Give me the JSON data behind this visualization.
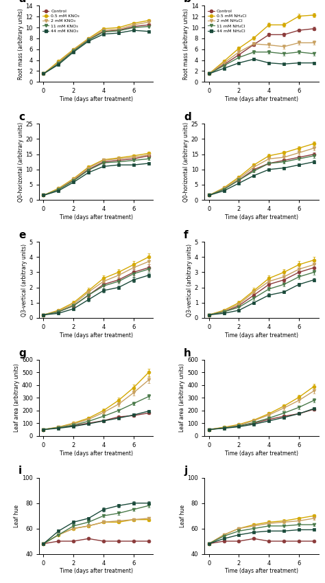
{
  "colors": {
    "control": "#8B3A3A",
    "c1": "#D4A800",
    "c2": "#C8A060",
    "c3": "#4A7A4A",
    "c4": "#1A4A3A"
  },
  "x": [
    0,
    1,
    2,
    3,
    4,
    5,
    6,
    7
  ],
  "panels": {
    "a": {
      "title": "a",
      "ylabel": "Root mass (arbitrary units)",
      "ylim": [
        0,
        14
      ],
      "yticks": [
        0,
        2,
        4,
        6,
        8,
        10,
        12,
        14
      ],
      "legend_labels": [
        "Control",
        "0.5 mM KNO₃",
        "2 mM KNO₃",
        "11 mM KNO₃",
        "44 mM KNO₃"
      ],
      "series": [
        [
          1.5,
          3.5,
          5.8,
          7.8,
          9.3,
          9.5,
          10.2,
          10.5
        ],
        [
          1.5,
          3.8,
          6.0,
          8.0,
          9.8,
          10.0,
          10.8,
          11.3
        ],
        [
          1.5,
          3.6,
          5.9,
          7.9,
          9.5,
          9.7,
          10.5,
          11.0
        ],
        [
          1.5,
          3.4,
          5.7,
          7.7,
          9.2,
          9.4,
          10.0,
          10.2
        ],
        [
          1.5,
          3.2,
          5.5,
          7.5,
          8.8,
          9.0,
          9.5,
          9.3
        ]
      ],
      "errors": [
        [
          0.1,
          0.2,
          0.2,
          0.2,
          0.2,
          0.2,
          0.2,
          0.2
        ],
        [
          0.1,
          0.2,
          0.2,
          0.2,
          0.2,
          0.2,
          0.2,
          0.2
        ],
        [
          0.1,
          0.2,
          0.2,
          0.2,
          0.2,
          0.2,
          0.2,
          0.2
        ],
        [
          0.1,
          0.2,
          0.2,
          0.2,
          0.2,
          0.2,
          0.2,
          0.2
        ],
        [
          0.1,
          0.2,
          0.2,
          0.2,
          0.2,
          0.2,
          0.2,
          0.2
        ]
      ]
    },
    "b": {
      "title": "b",
      "ylabel": "Root mass (arbitrary units)",
      "ylim": [
        0,
        14
      ],
      "yticks": [
        0,
        2,
        4,
        6,
        8,
        10,
        12,
        14
      ],
      "legend_labels": [
        "Control",
        "0.5 mM NH₄Cl",
        "2 mM NH₄Cl",
        "11 mM NH₄Cl",
        "44 mM NH₄Cl"
      ],
      "series": [
        [
          1.5,
          3.2,
          5.0,
          6.9,
          8.7,
          8.7,
          9.5,
          9.8
        ],
        [
          1.5,
          3.8,
          6.2,
          8.1,
          10.5,
          10.5,
          12.1,
          12.3
        ],
        [
          1.5,
          3.5,
          5.5,
          7.0,
          6.8,
          6.5,
          7.2,
          7.2
        ],
        [
          1.5,
          3.0,
          4.5,
          5.5,
          5.5,
          5.2,
          5.5,
          5.2
        ],
        [
          1.5,
          2.5,
          3.5,
          4.2,
          3.5,
          3.3,
          3.5,
          3.5
        ]
      ],
      "errors": [
        [
          0.1,
          0.2,
          0.2,
          0.3,
          0.3,
          0.3,
          0.3,
          0.3
        ],
        [
          0.1,
          0.2,
          0.3,
          0.3,
          0.4,
          0.4,
          0.4,
          0.4
        ],
        [
          0.1,
          0.2,
          0.3,
          0.4,
          0.4,
          0.4,
          0.4,
          0.4
        ],
        [
          0.1,
          0.2,
          0.2,
          0.3,
          0.3,
          0.3,
          0.3,
          0.3
        ],
        [
          0.1,
          0.15,
          0.2,
          0.2,
          0.2,
          0.2,
          0.2,
          0.2
        ]
      ]
    },
    "c": {
      "title": "c",
      "ylabel": "Q0-horizontal (arbitrary units)",
      "ylim": [
        0,
        25
      ],
      "yticks": [
        0,
        5,
        10,
        15,
        20,
        25
      ],
      "series": [
        [
          1.5,
          3.5,
          6.5,
          10.0,
          12.5,
          13.0,
          13.5,
          14.5
        ],
        [
          1.5,
          3.8,
          7.0,
          10.8,
          13.2,
          13.8,
          14.5,
          15.3
        ],
        [
          1.5,
          3.6,
          6.8,
          10.5,
          13.0,
          13.5,
          14.0,
          14.8
        ],
        [
          1.5,
          3.4,
          6.3,
          9.8,
          12.2,
          12.5,
          13.0,
          13.5
        ],
        [
          1.5,
          3.0,
          5.8,
          9.0,
          11.0,
          11.5,
          11.5,
          12.0
        ]
      ],
      "errors": [
        [
          0.1,
          0.2,
          0.3,
          0.3,
          0.4,
          0.4,
          0.4,
          0.5
        ],
        [
          0.1,
          0.2,
          0.3,
          0.4,
          0.4,
          0.4,
          0.5,
          0.5
        ],
        [
          0.1,
          0.2,
          0.3,
          0.3,
          0.4,
          0.4,
          0.4,
          0.5
        ],
        [
          0.1,
          0.2,
          0.3,
          0.3,
          0.4,
          0.4,
          0.4,
          0.4
        ],
        [
          0.1,
          0.2,
          0.3,
          0.3,
          0.3,
          0.3,
          0.3,
          0.4
        ]
      ]
    },
    "d": {
      "title": "d",
      "ylabel": "Q0-horizontal (arbitrary units)",
      "ylim": [
        0,
        25
      ],
      "yticks": [
        0,
        5,
        10,
        15,
        20,
        25
      ],
      "series": [
        [
          1.5,
          3.5,
          6.5,
          10.0,
          12.0,
          13.0,
          14.0,
          15.0
        ],
        [
          1.5,
          4.0,
          7.5,
          11.5,
          14.5,
          15.5,
          17.0,
          18.5
        ],
        [
          1.5,
          3.8,
          7.0,
          10.8,
          13.5,
          14.0,
          15.5,
          17.0
        ],
        [
          1.5,
          3.5,
          6.5,
          9.5,
          12.0,
          12.5,
          13.5,
          14.5
        ],
        [
          1.5,
          3.0,
          5.5,
          8.0,
          10.0,
          10.5,
          11.5,
          12.5
        ]
      ],
      "errors": [
        [
          0.1,
          0.2,
          0.3,
          0.3,
          0.4,
          0.4,
          0.5,
          0.5
        ],
        [
          0.1,
          0.3,
          0.4,
          0.5,
          0.6,
          0.6,
          0.7,
          0.7
        ],
        [
          0.1,
          0.3,
          0.4,
          0.5,
          0.6,
          0.6,
          0.6,
          0.7
        ],
        [
          0.1,
          0.2,
          0.3,
          0.4,
          0.5,
          0.5,
          0.5,
          0.6
        ],
        [
          0.1,
          0.2,
          0.3,
          0.3,
          0.4,
          0.4,
          0.5,
          0.5
        ]
      ]
    },
    "e": {
      "title": "e",
      "ylabel": "Q3-vertical (arbitrary units)",
      "ylim": [
        0,
        5
      ],
      "yticks": [
        0,
        1,
        2,
        3,
        4,
        5
      ],
      "series": [
        [
          0.2,
          0.4,
          0.8,
          1.5,
          2.2,
          2.5,
          3.0,
          3.3
        ],
        [
          0.2,
          0.5,
          1.0,
          1.8,
          2.6,
          3.0,
          3.5,
          4.0
        ],
        [
          0.2,
          0.45,
          0.9,
          1.7,
          2.4,
          2.8,
          3.3,
          3.7
        ],
        [
          0.2,
          0.4,
          0.8,
          1.5,
          2.1,
          2.4,
          2.9,
          3.2
        ],
        [
          0.2,
          0.3,
          0.6,
          1.2,
          1.8,
          2.0,
          2.5,
          2.8
        ]
      ],
      "errors": [
        [
          0.05,
          0.08,
          0.1,
          0.15,
          0.15,
          0.15,
          0.2,
          0.2
        ],
        [
          0.05,
          0.08,
          0.12,
          0.18,
          0.2,
          0.2,
          0.22,
          0.22
        ],
        [
          0.05,
          0.08,
          0.1,
          0.15,
          0.18,
          0.18,
          0.2,
          0.2
        ],
        [
          0.05,
          0.08,
          0.1,
          0.15,
          0.15,
          0.15,
          0.18,
          0.18
        ],
        [
          0.05,
          0.06,
          0.08,
          0.12,
          0.12,
          0.12,
          0.15,
          0.15
        ]
      ]
    },
    "f": {
      "title": "f",
      "ylabel": "Q3-vertical (arbitrary units)",
      "ylim": [
        0,
        5
      ],
      "yticks": [
        0,
        1,
        2,
        3,
        4,
        5
      ],
      "series": [
        [
          0.2,
          0.4,
          0.8,
          1.5,
          2.2,
          2.5,
          3.0,
          3.3
        ],
        [
          0.2,
          0.5,
          1.0,
          1.8,
          2.6,
          3.0,
          3.5,
          3.8
        ],
        [
          0.2,
          0.45,
          0.9,
          1.7,
          2.4,
          2.7,
          3.2,
          3.5
        ],
        [
          0.2,
          0.4,
          0.7,
          1.3,
          1.9,
          2.2,
          2.7,
          3.0
        ],
        [
          0.2,
          0.3,
          0.5,
          1.0,
          1.5,
          1.7,
          2.2,
          2.5
        ]
      ],
      "errors": [
        [
          0.05,
          0.08,
          0.1,
          0.15,
          0.15,
          0.15,
          0.2,
          0.2
        ],
        [
          0.05,
          0.08,
          0.12,
          0.18,
          0.2,
          0.2,
          0.22,
          0.22
        ],
        [
          0.05,
          0.08,
          0.1,
          0.15,
          0.18,
          0.18,
          0.2,
          0.2
        ],
        [
          0.05,
          0.08,
          0.1,
          0.12,
          0.12,
          0.12,
          0.15,
          0.15
        ],
        [
          0.05,
          0.06,
          0.08,
          0.1,
          0.1,
          0.1,
          0.12,
          0.12
        ]
      ]
    },
    "g": {
      "title": "g",
      "ylabel": "Leaf area (arbitrary units)",
      "ylim": [
        0,
        600
      ],
      "yticks": [
        0,
        100,
        200,
        300,
        400,
        500,
        600
      ],
      "series": [
        [
          50,
          65,
          80,
          100,
          120,
          150,
          160,
          180
        ],
        [
          50,
          70,
          100,
          140,
          200,
          280,
          380,
          500
        ],
        [
          50,
          68,
          95,
          130,
          185,
          250,
          340,
          440
        ],
        [
          50,
          65,
          85,
          115,
          155,
          200,
          255,
          310
        ],
        [
          50,
          60,
          75,
          95,
          118,
          140,
          165,
          195
        ]
      ],
      "errors": [
        [
          3,
          4,
          5,
          6,
          7,
          8,
          9,
          10
        ],
        [
          3,
          5,
          8,
          10,
          15,
          20,
          25,
          30
        ],
        [
          3,
          5,
          7,
          9,
          12,
          16,
          20,
          25
        ],
        [
          3,
          4,
          5,
          7,
          9,
          12,
          15,
          18
        ],
        [
          3,
          4,
          5,
          6,
          7,
          8,
          10,
          11
        ]
      ]
    },
    "h": {
      "title": "h",
      "ylabel": "Leaf area (arbitrary units)",
      "ylim": [
        0,
        600
      ],
      "yticks": [
        0,
        100,
        200,
        300,
        400,
        500,
        600
      ],
      "series": [
        [
          50,
          65,
          80,
          100,
          130,
          155,
          175,
          210
        ],
        [
          50,
          68,
          90,
          125,
          175,
          235,
          305,
          390
        ],
        [
          50,
          65,
          85,
          120,
          165,
          220,
          280,
          355
        ],
        [
          50,
          62,
          78,
          105,
          140,
          180,
          225,
          280
        ],
        [
          50,
          60,
          72,
          92,
          118,
          145,
          175,
          215
        ]
      ],
      "errors": [
        [
          3,
          4,
          5,
          6,
          8,
          9,
          10,
          12
        ],
        [
          3,
          5,
          7,
          9,
          12,
          15,
          18,
          22
        ],
        [
          3,
          5,
          6,
          8,
          11,
          14,
          17,
          20
        ],
        [
          3,
          4,
          5,
          7,
          9,
          11,
          14,
          17
        ],
        [
          3,
          4,
          4,
          6,
          7,
          9,
          11,
          13
        ]
      ]
    },
    "i": {
      "title": "i",
      "ylabel": "Leaf hue",
      "ylim": [
        40,
        100
      ],
      "yticks": [
        40,
        60,
        80,
        100
      ],
      "series": [
        [
          48,
          50,
          50,
          52,
          50,
          50,
          50,
          50
        ],
        [
          48,
          55,
          60,
          62,
          65,
          65,
          67,
          67
        ],
        [
          48,
          55,
          60,
          62,
          65,
          66,
          67,
          68
        ],
        [
          48,
          55,
          62,
          65,
          70,
          72,
          75,
          78
        ],
        [
          48,
          58,
          65,
          68,
          75,
          78,
          80,
          80
        ]
      ],
      "errors": [
        [
          0.5,
          0.5,
          0.5,
          0.5,
          0.5,
          0.5,
          0.5,
          0.5
        ],
        [
          0.5,
          0.8,
          1.0,
          1.0,
          1.0,
          1.0,
          1.0,
          1.0
        ],
        [
          0.5,
          0.8,
          1.0,
          1.0,
          1.0,
          1.0,
          1.0,
          1.0
        ],
        [
          0.5,
          0.8,
          1.0,
          1.2,
          1.2,
          1.2,
          1.2,
          1.2
        ],
        [
          0.5,
          1.0,
          1.2,
          1.2,
          1.5,
          1.5,
          1.5,
          1.5
        ]
      ]
    },
    "j": {
      "title": "j",
      "ylabel": "Leaf hue",
      "ylim": [
        40,
        100
      ],
      "yticks": [
        40,
        60,
        80,
        100
      ],
      "series": [
        [
          48,
          50,
          50,
          52,
          50,
          50,
          50,
          50
        ],
        [
          48,
          55,
          60,
          63,
          65,
          66,
          68,
          70
        ],
        [
          48,
          55,
          60,
          62,
          64,
          65,
          66,
          68
        ],
        [
          48,
          54,
          58,
          60,
          62,
          62,
          63,
          63
        ],
        [
          48,
          52,
          55,
          57,
          58,
          58,
          59,
          59
        ]
      ],
      "errors": [
        [
          0.5,
          0.5,
          0.5,
          0.5,
          0.5,
          0.5,
          0.5,
          0.5
        ],
        [
          0.5,
          0.8,
          1.0,
          1.0,
          1.2,
          1.2,
          1.2,
          1.2
        ],
        [
          0.5,
          0.8,
          1.0,
          1.0,
          1.0,
          1.0,
          1.0,
          1.0
        ],
        [
          0.5,
          0.6,
          0.8,
          0.8,
          0.8,
          0.8,
          0.8,
          0.8
        ],
        [
          0.5,
          0.5,
          0.6,
          0.6,
          0.6,
          0.6,
          0.6,
          0.6
        ]
      ]
    }
  },
  "color_list": [
    "#8B3A3A",
    "#D4A800",
    "#C8A060",
    "#4A7A4A",
    "#1A4A3A"
  ],
  "marker_list": [
    "o",
    "o",
    "v",
    "v",
    "s"
  ],
  "xlabel": "Time (days after treatment)",
  "panel_order": [
    "a",
    "b",
    "c",
    "d",
    "e",
    "f",
    "g",
    "h",
    "i",
    "j"
  ]
}
